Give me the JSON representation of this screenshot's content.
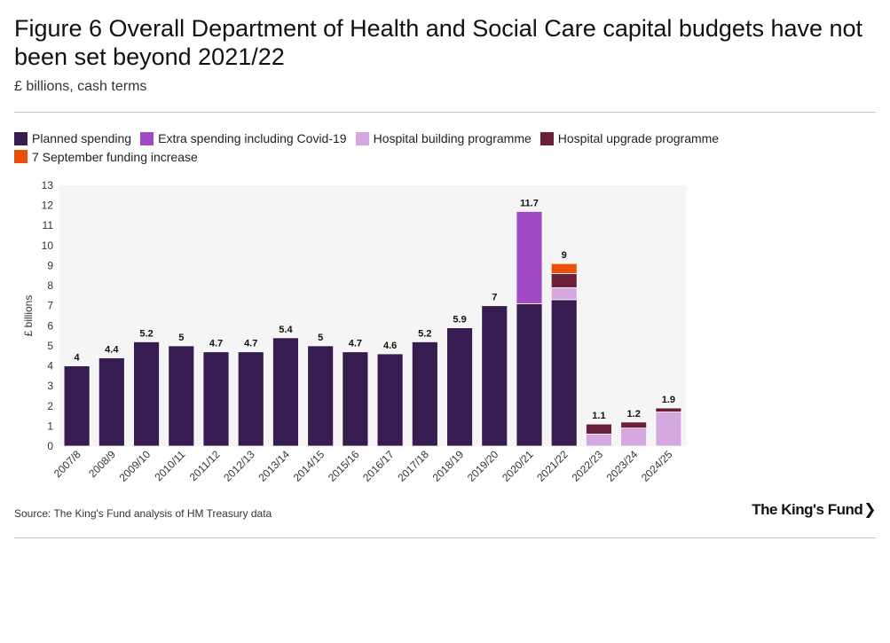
{
  "figure": {
    "title": "Figure 6 Overall Department of Health and Social Care capital budgets have not been set beyond 2021/22",
    "subtitle": "£ billions, cash terms",
    "source": "Source: The King's Fund analysis of HM Treasury data",
    "logo_text": "The King's Fund",
    "logo_chevron": "❯"
  },
  "colors": {
    "planned": "#371c52",
    "extra": "#a24ac6",
    "hospital_building": "#d5a9e0",
    "hospital_upgrade": "#6b1f3b",
    "september": "#e8500c",
    "plot_bg": "#f5f5f5"
  },
  "chart_data": {
    "type": "bar",
    "stacked": true,
    "ylabel": "£ billions",
    "xlabel": "",
    "ylim": [
      0,
      13
    ],
    "yticks": [
      0,
      1,
      2,
      3,
      4,
      5,
      6,
      7,
      8,
      9,
      10,
      11,
      12,
      13
    ],
    "grid": false,
    "legend_position": "top-left",
    "categories": [
      "2007/8",
      "2008/9",
      "2009/10",
      "2010/11",
      "2011/12",
      "2012/13",
      "2013/14",
      "2014/15",
      "2015/16",
      "2016/17",
      "2017/18",
      "2018/19",
      "2019/20",
      "2020/21",
      "2021/22",
      "2022/23",
      "2023/24",
      "2024/25"
    ],
    "series": [
      {
        "name": "Planned spending",
        "color_key": "planned",
        "values": [
          4,
          4.4,
          5.2,
          5,
          4.7,
          4.7,
          5.4,
          5,
          4.7,
          4.6,
          5.2,
          5.9,
          7,
          7.1,
          7.3,
          0,
          0,
          0
        ]
      },
      {
        "name": "Extra spending including Covid-19",
        "color_key": "extra",
        "values": [
          0,
          0,
          0,
          0,
          0,
          0,
          0,
          0,
          0,
          0,
          0,
          0,
          0,
          4.6,
          0,
          0,
          0,
          0
        ]
      },
      {
        "name": "Hospital building programme",
        "color_key": "hospital_building",
        "values": [
          0,
          0,
          0,
          0,
          0,
          0,
          0,
          0,
          0,
          0,
          0,
          0,
          0,
          0,
          0.6,
          0.6,
          0.9,
          1.7
        ]
      },
      {
        "name": "Hospital upgrade programme",
        "color_key": "hospital_upgrade",
        "values": [
          0,
          0,
          0,
          0,
          0,
          0,
          0,
          0,
          0,
          0,
          0,
          0,
          0,
          0,
          0.7,
          0.5,
          0.3,
          0.2
        ]
      },
      {
        "name": "7 September funding increase",
        "color_key": "september",
        "values": [
          0,
          0,
          0,
          0,
          0,
          0,
          0,
          0,
          0,
          0,
          0,
          0,
          0,
          0,
          0.5,
          0,
          0,
          0
        ]
      }
    ],
    "totals": [
      "4",
      "4.4",
      "5.2",
      "5",
      "4.7",
      "4.7",
      "5.4",
      "5",
      "4.7",
      "4.6",
      "5.2",
      "5.9",
      "7",
      "11.7",
      "9",
      "1.1",
      "1.2",
      "1.9"
    ]
  }
}
